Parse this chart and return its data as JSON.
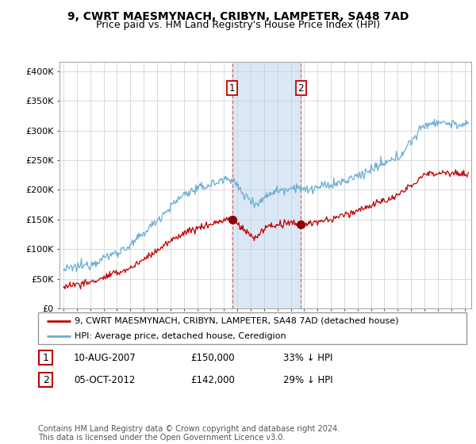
{
  "title": "9, CWRT MAESMYNACH, CRIBYN, LAMPETER, SA48 7AD",
  "subtitle": "Price paid vs. HM Land Registry's House Price Index (HPI)",
  "ylabel_ticks": [
    "£0",
    "£50K",
    "£100K",
    "£150K",
    "£200K",
    "£250K",
    "£300K",
    "£350K",
    "£400K"
  ],
  "ytick_values": [
    0,
    50000,
    100000,
    150000,
    200000,
    250000,
    300000,
    350000,
    400000
  ],
  "ylim": [
    0,
    415000
  ],
  "xlim_start": 1994.7,
  "xlim_end": 2025.5,
  "hpi_color": "#6aaed6",
  "price_color": "#c00000",
  "marker_color": "#8b0000",
  "shade_color": "#dae8f5",
  "legend_entries": [
    "9, CWRT MAESMYNACH, CRIBYN, LAMPETER, SA48 7AD (detached house)",
    "HPI: Average price, detached house, Ceredigion"
  ],
  "sale1_date": 2007.61,
  "sale1_price": 150000,
  "sale1_label": "1",
  "sale1_display": "10-AUG-2007",
  "sale1_amount": "£150,000",
  "sale1_hpi": "33% ↓ HPI",
  "sale2_date": 2012.76,
  "sale2_price": 142000,
  "sale2_label": "2",
  "sale2_display": "05-OCT-2012",
  "sale2_amount": "£142,000",
  "sale2_hpi": "29% ↓ HPI",
  "footnote": "Contains HM Land Registry data © Crown copyright and database right 2024.\nThis data is licensed under the Open Government Licence v3.0.",
  "title_fontsize": 10,
  "subtitle_fontsize": 9,
  "tick_fontsize": 8,
  "legend_fontsize": 8,
  "table_fontsize": 8.5
}
